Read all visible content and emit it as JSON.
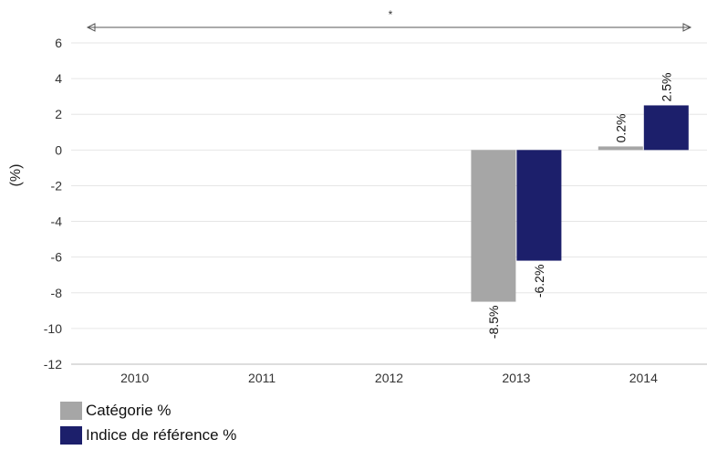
{
  "chart_data": {
    "type": "bar",
    "categories": [
      "2010",
      "2011",
      "2012",
      "2013",
      "2014"
    ],
    "series": [
      {
        "name": "Catégorie %",
        "values": [
          null,
          null,
          null,
          -8.5,
          0.2
        ],
        "color": "#a6a6a6"
      },
      {
        "name": "Indice de référence %",
        "values": [
          null,
          null,
          null,
          -6.2,
          2.5
        ],
        "color": "#1c1f6b"
      }
    ],
    "data_labels": [
      [
        null,
        null,
        null,
        "-8.5%",
        "0.2%"
      ],
      [
        null,
        null,
        null,
        "-6.2%",
        "2.5%"
      ]
    ],
    "ylabel": "(%)",
    "ylim": [
      -12,
      6
    ],
    "yticks": [
      6,
      4,
      2,
      0,
      -2,
      -4,
      -6,
      -8,
      -10,
      -12
    ],
    "annotation": "*",
    "grid": true,
    "legend": "bottom-left"
  }
}
